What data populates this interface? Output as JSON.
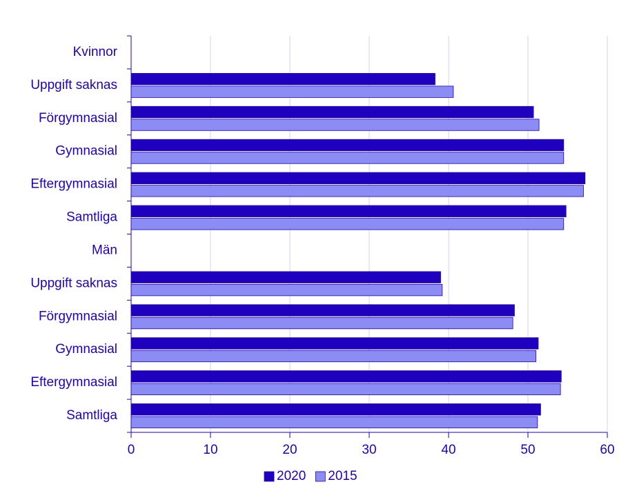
{
  "chart_data": {
    "type": "hbar",
    "categories": [
      "Kvinnor",
      "Uppgift saknas",
      "Förgymnasial",
      "Gymnasial",
      "Eftergymnasial",
      "Samtliga",
      "Män",
      "Uppgift saknas",
      "Förgymnasial",
      "Gymnasial",
      "Eftergymnasial",
      "Samtliga"
    ],
    "series": [
      {
        "name": "2020",
        "color": "#1e00be",
        "values": [
          null,
          38.3,
          50.7,
          54.5,
          57.2,
          54.8,
          null,
          39.0,
          48.3,
          51.3,
          54.2,
          51.6
        ]
      },
      {
        "name": "2015",
        "color": "#8c8cf5",
        "values": [
          null,
          40.6,
          51.4,
          54.5,
          57.0,
          54.5,
          null,
          39.2,
          48.1,
          51.0,
          54.1,
          51.2
        ]
      }
    ],
    "xlim": [
      0,
      60
    ],
    "xticks": [
      0,
      10,
      20,
      30,
      40,
      50,
      60
    ],
    "grid": true,
    "legend": "bottom"
  }
}
